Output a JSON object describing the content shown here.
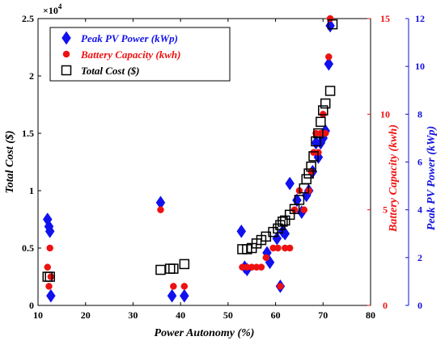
{
  "chart_data": {
    "type": "scatter",
    "xlabel": "Power Autonomy (%)",
    "xlim": [
      10,
      80
    ],
    "x_ticks": [
      "10",
      "20",
      "30",
      "40",
      "50",
      "60",
      "70",
      "80"
    ],
    "y_left": {
      "label": "Total Cost ($)",
      "lim": [
        0,
        25000
      ],
      "ticks": [
        "0",
        "0.5",
        "1",
        "1.5",
        "2",
        "2.5"
      ],
      "multiplier": "×10",
      "multiplier_exp": "4",
      "color": "#000000"
    },
    "y_right_battery": {
      "label": "Battery Capacity (kwh)",
      "lim": [
        0,
        15
      ],
      "ticks": [
        "0",
        "5",
        "10",
        "15"
      ],
      "color": "#ee1111"
    },
    "y_right_pv": {
      "label": "Peak PV Power (kWp)",
      "lim": [
        0,
        12
      ],
      "ticks": [
        "0",
        "2",
        "4",
        "6",
        "8",
        "10",
        "12"
      ],
      "color": "#1111dd"
    },
    "legend": {
      "position": "top-left"
    },
    "series": [
      {
        "name": "Peak PV Power (kWp)",
        "axis": "pv",
        "marker": "diamond",
        "color": "#1111ee",
        "points": [
          [
            12.0,
            3.6
          ],
          [
            12.3,
            3.3
          ],
          [
            12.5,
            3.1
          ],
          [
            12.7,
            0.4
          ],
          [
            35.8,
            4.3
          ],
          [
            38.2,
            0.4
          ],
          [
            40.8,
            0.4
          ],
          [
            52.8,
            3.1
          ],
          [
            53.5,
            1.6
          ],
          [
            54.0,
            1.5
          ],
          [
            58.2,
            2.2
          ],
          [
            58.8,
            1.8
          ],
          [
            60.3,
            2.8
          ],
          [
            61.0,
            0.8
          ],
          [
            61.5,
            3.1
          ],
          [
            62.0,
            3.0
          ],
          [
            63.0,
            5.1
          ],
          [
            64.5,
            4.4
          ],
          [
            65.5,
            3.9
          ],
          [
            66.5,
            4.6
          ],
          [
            67.0,
            4.8
          ],
          [
            67.8,
            5.6
          ],
          [
            68.5,
            6.8
          ],
          [
            69.0,
            6.2
          ],
          [
            69.5,
            6.8
          ],
          [
            70.0,
            7.0
          ],
          [
            70.5,
            7.3
          ],
          [
            71.2,
            10.1
          ],
          [
            71.5,
            11.7
          ]
        ]
      },
      {
        "name": "Battery Capacity (kwh)",
        "axis": "battery",
        "marker": "circle",
        "color": "#ee1111",
        "points": [
          [
            12.0,
            2.0
          ],
          [
            12.3,
            1.0
          ],
          [
            12.5,
            3.0
          ],
          [
            12.7,
            1.5
          ],
          [
            35.8,
            5.0
          ],
          [
            38.5,
            1.0
          ],
          [
            40.8,
            1.0
          ],
          [
            53.0,
            2.0
          ],
          [
            54.0,
            2.0
          ],
          [
            55.0,
            2.0
          ],
          [
            56.0,
            2.0
          ],
          [
            57.0,
            2.0
          ],
          [
            58.0,
            2.5
          ],
          [
            59.5,
            3.0
          ],
          [
            60.5,
            3.0
          ],
          [
            61.0,
            1.0
          ],
          [
            62.0,
            3.0
          ],
          [
            63.0,
            3.0
          ],
          [
            64.0,
            5.0
          ],
          [
            65.0,
            6.0
          ],
          [
            66.0,
            5.0
          ],
          [
            67.0,
            6.0
          ],
          [
            67.5,
            7.0
          ],
          [
            68.0,
            8.0
          ],
          [
            68.5,
            9.0
          ],
          [
            69.0,
            8.0
          ],
          [
            69.5,
            9.0
          ],
          [
            70.0,
            10.0
          ],
          [
            70.5,
            9.0
          ],
          [
            71.2,
            13.0
          ],
          [
            71.5,
            15.0
          ]
        ]
      },
      {
        "name": "Total Cost ($)",
        "axis": "cost",
        "marker": "square",
        "color": "#000000",
        "points": [
          [
            12.0,
            2500
          ],
          [
            12.5,
            2500
          ],
          [
            35.8,
            3100
          ],
          [
            37.8,
            3200
          ],
          [
            38.5,
            3200
          ],
          [
            40.8,
            3600
          ],
          [
            53.0,
            4900
          ],
          [
            54.0,
            4900
          ],
          [
            55.0,
            5000
          ],
          [
            56.0,
            5400
          ],
          [
            57.0,
            5700
          ],
          [
            58.0,
            6000
          ],
          [
            59.5,
            6400
          ],
          [
            60.5,
            6700
          ],
          [
            61.0,
            7000
          ],
          [
            61.5,
            7300
          ],
          [
            62.0,
            7400
          ],
          [
            63.0,
            7900
          ],
          [
            64.0,
            8400
          ],
          [
            65.0,
            9200
          ],
          [
            66.0,
            10200
          ],
          [
            66.5,
            11000
          ],
          [
            67.0,
            11500
          ],
          [
            67.5,
            12100
          ],
          [
            68.0,
            13000
          ],
          [
            68.5,
            14300
          ],
          [
            69.0,
            15000
          ],
          [
            69.5,
            16000
          ],
          [
            70.0,
            17000
          ],
          [
            70.5,
            17600
          ],
          [
            71.5,
            18700
          ],
          [
            72.0,
            24500
          ]
        ]
      }
    ]
  }
}
